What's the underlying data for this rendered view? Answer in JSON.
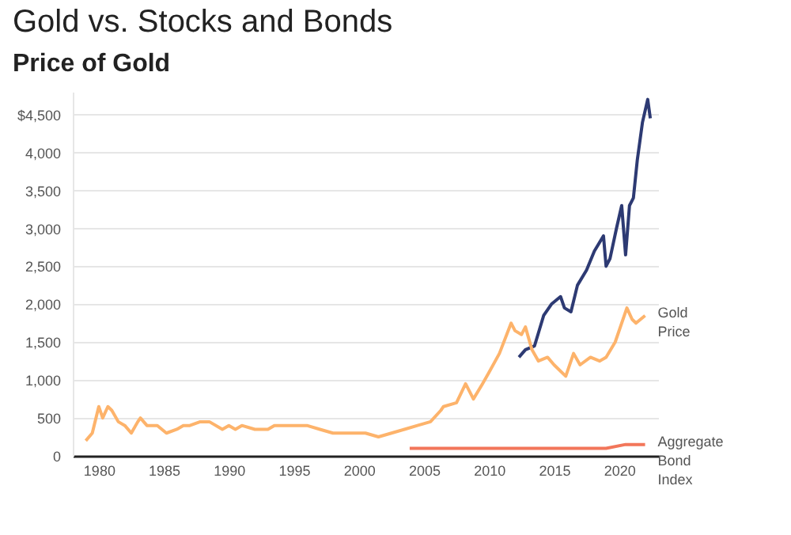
{
  "chart_data": {
    "type": "line",
    "title": "Gold vs. Stocks and Bonds",
    "subtitle": "Price of Gold",
    "xlim": [
      1978,
      2023
    ],
    "xticks": [
      1980,
      1985,
      1990,
      1995,
      2000,
      2005,
      2010,
      2015,
      2020
    ],
    "ylim": [
      0,
      4800
    ],
    "yticks": [
      0,
      {
        "value": 500,
        "label": "500"
      },
      {
        "value": 1000,
        "label": "1,000"
      },
      {
        "value": 1500,
        "label": "1,500"
      },
      {
        "value": 2000,
        "label": "2,000"
      },
      {
        "value": 2500,
        "label": "2,500"
      },
      {
        "value": 3000,
        "label": "3,000"
      },
      {
        "value": 3500,
        "label": "3,500"
      },
      {
        "value": 4000,
        "label": "4,000"
      },
      {
        "value": 4500,
        "label": "$4,500"
      }
    ],
    "grid": "y",
    "legend": false,
    "line_style": "solid",
    "marker": "none",
    "series": [
      {
        "color": "#2d3a73",
        "x": [
          2012.3,
          2012.8,
          2013.5,
          2014.2,
          2014.8,
          2015.5,
          2015.8,
          2016.3,
          2016.8,
          2017.5,
          2018.1,
          2018.8,
          2019.0,
          2019.3,
          2019.8,
          2020.2,
          2020.5,
          2020.8,
          2021.1,
          2021.4,
          2021.8,
          2022.2,
          2022.4
        ],
        "values": [
          1300,
          1400,
          1450,
          1850,
          2000,
          2100,
          1950,
          1900,
          2250,
          2450,
          2700,
          2900,
          2500,
          2600,
          3000,
          3300,
          2650,
          3300,
          3400,
          3900,
          4400,
          4700,
          4450
        ]
      },
      {
        "name": "Gold Price",
        "color": "#fdb36b",
        "x": [
          1979.0,
          1979.5,
          1980.0,
          1980.3,
          1980.7,
          1981.0,
          1981.5,
          1982.0,
          1982.5,
          1983.0,
          1983.2,
          1983.7,
          1984.5,
          1985.2,
          1986.0,
          1986.5,
          1987.0,
          1987.8,
          1988.5,
          1989.5,
          1990.0,
          1990.5,
          1991.0,
          1992.0,
          1993.0,
          1993.5,
          1994.0,
          1995.0,
          1996.0,
          1997.0,
          1998.0,
          1999.0,
          1999.8,
          2000.5,
          2001.5,
          2002.5,
          2003.5,
          2004.5,
          2005.5,
          2006.3,
          2006.5,
          2007.5,
          2008.2,
          2008.8,
          2009.5,
          2010.0,
          2010.8,
          2011.7,
          2012.0,
          2012.5,
          2012.8,
          2013.3,
          2013.8,
          2014.5,
          2015.0,
          2015.9,
          2016.5,
          2017.0,
          2017.8,
          2018.5,
          2019.0,
          2019.7,
          2020.6,
          2021.0,
          2021.3,
          2022.0
        ],
        "values": [
          200,
          300,
          650,
          500,
          650,
          600,
          450,
          400,
          300,
          450,
          500,
          400,
          400,
          300,
          350,
          400,
          400,
          450,
          450,
          350,
          400,
          350,
          400,
          350,
          350,
          400,
          400,
          400,
          400,
          350,
          300,
          300,
          300,
          300,
          250,
          300,
          350,
          400,
          450,
          600,
          650,
          700,
          950,
          750,
          950,
          1100,
          1350,
          1750,
          1650,
          1600,
          1700,
          1400,
          1250,
          1300,
          1200,
          1050,
          1350,
          1200,
          1300,
          1250,
          1300,
          1500,
          1950,
          1800,
          1750,
          1850
        ]
      },
      {
        "name": "Aggregate Bond Index",
        "color": "#f2765a",
        "x": [
          2003.9,
          2008,
          2012,
          2016,
          2019,
          2020.5,
          2022
        ],
        "values": [
          100,
          100,
          100,
          100,
          100,
          150,
          150
        ]
      }
    ]
  }
}
